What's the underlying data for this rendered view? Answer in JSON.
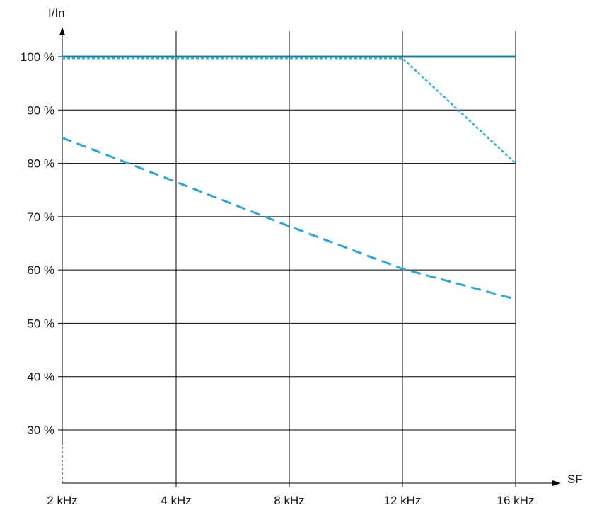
{
  "chart_data": {
    "type": "line",
    "xlabel": "SF",
    "ylabel": "I/In",
    "x_ticks": [
      "2 kHz",
      "4 kHz",
      "8 kHz",
      "12 kHz",
      "16 kHz"
    ],
    "y_ticks": [
      {
        "value": 100,
        "label": "100 %"
      },
      {
        "value": 90,
        "label": "90 %"
      },
      {
        "value": 80,
        "label": "80 %"
      },
      {
        "value": 70,
        "label": "70 %"
      },
      {
        "value": 60,
        "label": "60 %"
      },
      {
        "value": 50,
        "label": "50 %"
      },
      {
        "value": 40,
        "label": "40 %"
      },
      {
        "value": 30,
        "label": "30 %"
      }
    ],
    "ylim": [
      21,
      101
    ],
    "grid": true,
    "series": [
      {
        "style": "solid",
        "color": "#1f7ea1",
        "values": [
          100,
          100,
          100,
          100,
          100
        ]
      },
      {
        "style": "dotted",
        "color": "#29b1de",
        "values": [
          99.7,
          99.7,
          99.7,
          99.7,
          80
        ]
      },
      {
        "style": "dashed",
        "color": "#29a9dd",
        "values": [
          84.8,
          76.5,
          68.2,
          60.2,
          54.5
        ]
      }
    ]
  }
}
